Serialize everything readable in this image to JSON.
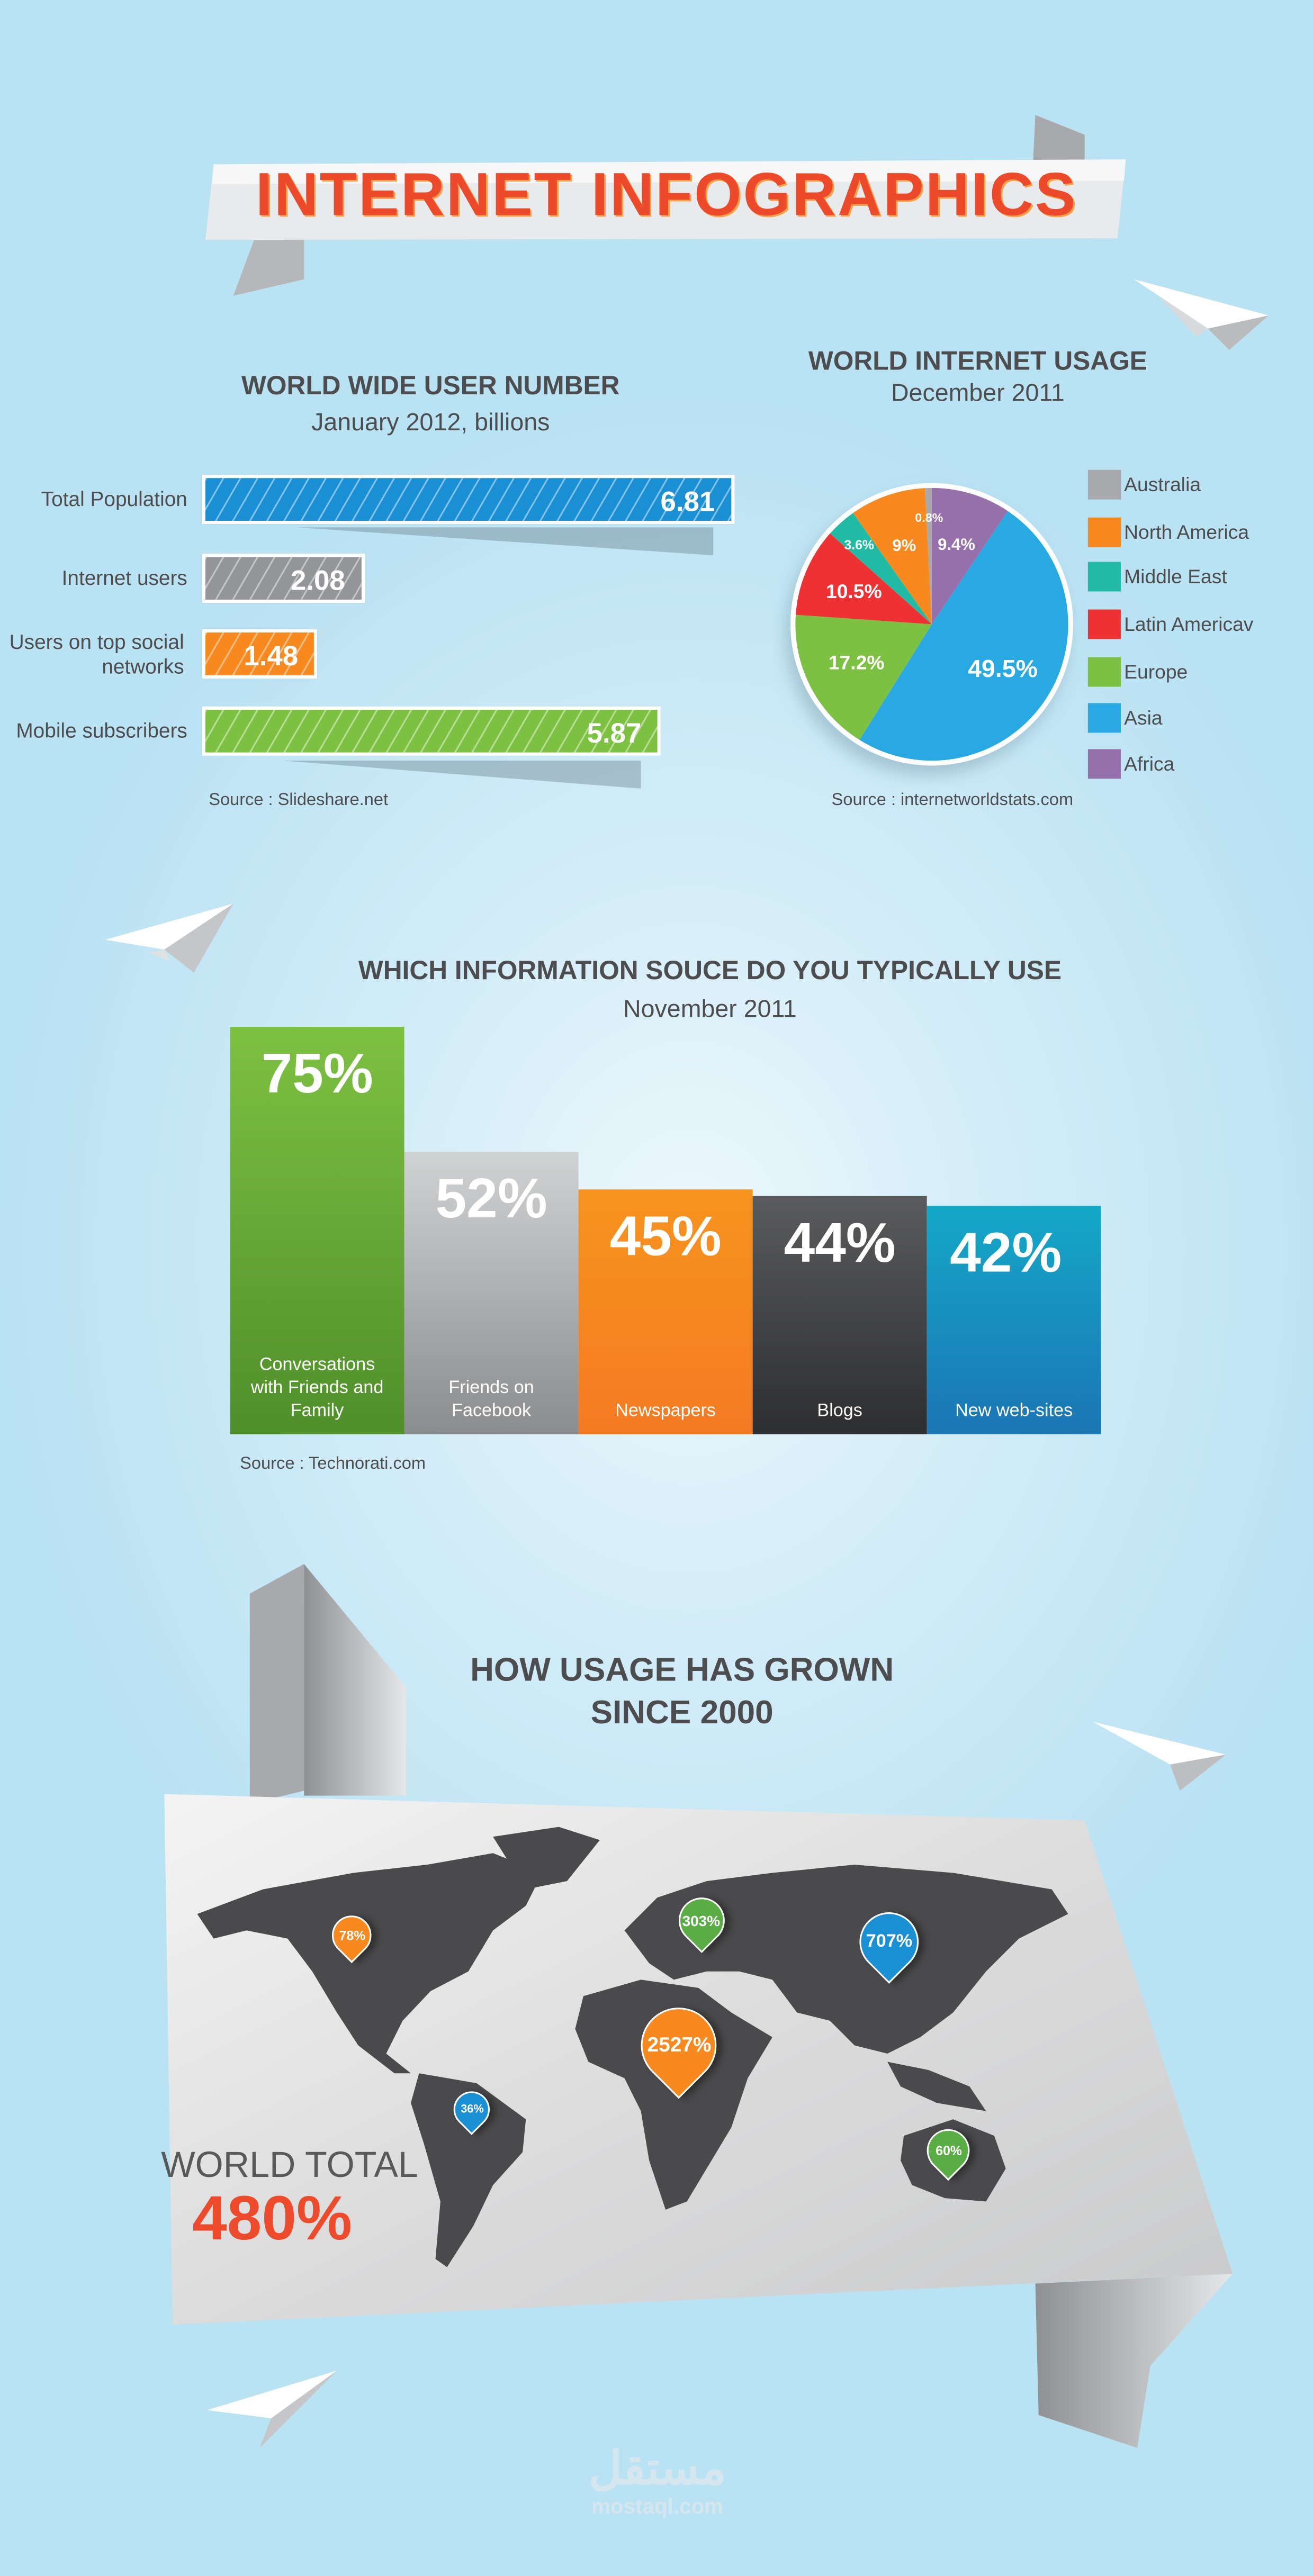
{
  "title": "INTERNET INFOGRAPHICS",
  "chart_data": [
    {
      "type": "bar",
      "orientation": "horizontal",
      "title": "WORLD WIDE USER NUMBER",
      "subtitle": "January 2012, billions",
      "categories": [
        "Total Population",
        "Internet users",
        "Users on top social networks",
        "Mobile subscribers"
      ],
      "values": [
        6.81,
        2.08,
        1.48,
        5.87
      ],
      "value_labels": [
        "6.81",
        "2.08",
        "1.48",
        "5.87"
      ],
      "colors": [
        "#1a8fd4",
        "#939598",
        "#f7891f",
        "#7dc142"
      ],
      "source": "Source : Slideshare.net"
    },
    {
      "type": "pie",
      "title": "WORLD INTERNET USAGE",
      "subtitle": "December 2011",
      "slices": [
        {
          "name": "Africa",
          "value": 9.4,
          "label": "9.4%",
          "color": "#9670ab"
        },
        {
          "name": "Asia",
          "value": 49.5,
          "label": "49.5%",
          "color": "#28a9e1"
        },
        {
          "name": "Europe",
          "value": 17.2,
          "label": "17.2%",
          "color": "#7dc142"
        },
        {
          "name": "Latin Americav",
          "value": 10.5,
          "label": "10.5%",
          "color": "#ee3132"
        },
        {
          "name": "Middle East",
          "value": 3.6,
          "label": "3.6%",
          "color": "#20bba5"
        },
        {
          "name": "North America",
          "value": 9,
          "label": "9%",
          "color": "#f7891f"
        },
        {
          "name": "Australia",
          "value": 0.8,
          "label": "0.8%",
          "color": "#a7a9ac"
        }
      ],
      "legend": [
        "Australia",
        "North America",
        "Middle East",
        "Latin Americav",
        "Europe",
        "Asia",
        "Africa"
      ],
      "legend_placement": "right",
      "source": "Source : internetworldstats.com"
    },
    {
      "type": "bar",
      "orientation": "vertical",
      "title": "WHICH INFORMATION SOUCE DO YOU TYPICALLY USE",
      "subtitle": "November 2011",
      "categories": [
        "Conversations with Friends and Family",
        "Friends on Facebook",
        "Newspapers",
        "Blogs",
        "New web-sites"
      ],
      "values": [
        75,
        52,
        45,
        44,
        42
      ],
      "value_labels": [
        "75%",
        "52%",
        "45%",
        "44%",
        "42%"
      ],
      "colors": [
        [
          "#7dc142",
          "#4f8f2a"
        ],
        [
          "#d0d2d3",
          "#8a8c8e"
        ],
        [
          "#f7941e",
          "#f57a22"
        ],
        [
          "#5a5b5d",
          "#2d2e30"
        ],
        [
          "#14a8c8",
          "#1b75b4"
        ]
      ],
      "source": "Source : Technorati.com"
    }
  ],
  "growth": {
    "title_line1": "HOW USAGE HAS GROWN",
    "title_line2": "SINCE 2000",
    "total_label": "WORLD TOTAL",
    "total_value": "480%",
    "pins": [
      {
        "region": "North America",
        "label": "78%",
        "color": "#f7891f"
      },
      {
        "region": "Europe",
        "label": "303%",
        "color": "#5aad44"
      },
      {
        "region": "Asia",
        "label": "707%",
        "color": "#1a8fd4"
      },
      {
        "region": "Africa",
        "label": "2527%",
        "color": "#f7891f"
      },
      {
        "region": "Latin America",
        "label": "36%",
        "color": "#1a8fd4"
      },
      {
        "region": "Australia",
        "label": "60%",
        "color": "#5aad44"
      }
    ]
  },
  "logo": {
    "arabic": "مستقل",
    "text": "mostaql.com"
  }
}
